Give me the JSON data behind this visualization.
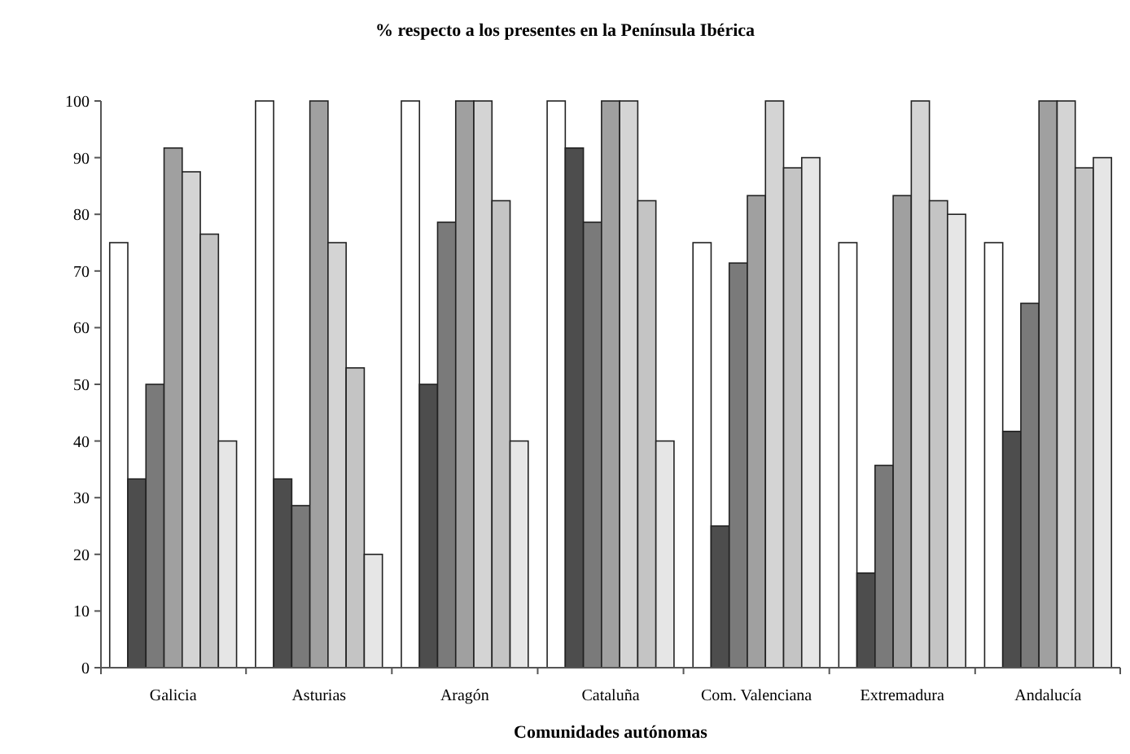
{
  "chart_data": {
    "type": "bar",
    "title": "% respecto a los presentes en la Península Ibérica",
    "xlabel": "Comunidades autónomas",
    "categories": [
      "Galicia",
      "Asturias",
      "Aragón",
      "Cataluña",
      "Com. Valenciana",
      "Extremadura",
      "Andalucía"
    ],
    "series": [
      {
        "color": "#ffffff",
        "values": [
          75,
          100,
          100,
          100,
          75,
          75,
          75
        ]
      },
      {
        "color": "#4d4d4d",
        "values": [
          33.3,
          33.3,
          50,
          91.7,
          25,
          16.7,
          41.7
        ]
      },
      {
        "color": "#7a7a7a",
        "values": [
          50,
          28.6,
          78.6,
          78.6,
          71.4,
          35.7,
          64.3
        ]
      },
      {
        "color": "#a0a0a0",
        "values": [
          91.7,
          100,
          100,
          100,
          83.3,
          83.3,
          100
        ]
      },
      {
        "color": "#d4d4d4",
        "values": [
          87.5,
          75,
          100,
          100,
          100,
          100,
          100
        ]
      },
      {
        "color": "#c4c4c4",
        "values": [
          76.5,
          52.9,
          82.4,
          82.4,
          88.2,
          82.4,
          88.2
        ]
      },
      {
        "color": "#e6e6e6",
        "values": [
          40,
          20,
          40,
          40,
          90,
          80,
          90
        ]
      }
    ],
    "ylim": [
      0,
      100
    ],
    "yticks": [
      0,
      10,
      20,
      30,
      40,
      50,
      60,
      70,
      80,
      90,
      100
    ],
    "grid": false
  }
}
